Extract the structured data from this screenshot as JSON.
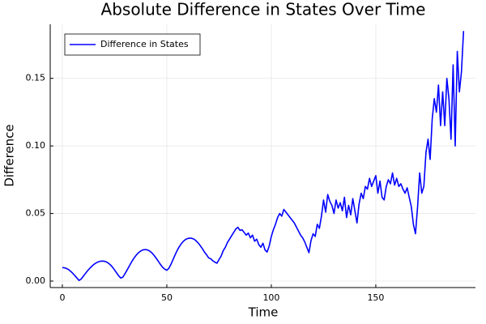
{
  "chart_data": {
    "type": "line",
    "title": "Absolute Difference in States Over Time",
    "x_label": "Time",
    "y_label": "Difference",
    "x": [
      0,
      1,
      2,
      3,
      4,
      5,
      6,
      7,
      8,
      9,
      10,
      11,
      12,
      13,
      14,
      15,
      16,
      17,
      18,
      19,
      20,
      21,
      22,
      23,
      24,
      25,
      26,
      27,
      28,
      29,
      30,
      31,
      32,
      33,
      34,
      35,
      36,
      37,
      38,
      39,
      40,
      41,
      42,
      43,
      44,
      45,
      46,
      47,
      48,
      49,
      50,
      51,
      52,
      53,
      54,
      55,
      56,
      57,
      58,
      59,
      60,
      61,
      62,
      63,
      64,
      65,
      66,
      67,
      68,
      69,
      70,
      71,
      72,
      73,
      74,
      75,
      76,
      77,
      78,
      79,
      80,
      81,
      82,
      83,
      84,
      85,
      86,
      87,
      88,
      89,
      90,
      91,
      92,
      93,
      94,
      95,
      96,
      97,
      98,
      99,
      100,
      101,
      102,
      103,
      104,
      105,
      106,
      107,
      108,
      109,
      110,
      111,
      112,
      113,
      114,
      115,
      116,
      117,
      118,
      119,
      120,
      121,
      122,
      123,
      124,
      125,
      126,
      127,
      128,
      129,
      130,
      131,
      132,
      133,
      134,
      135,
      136,
      137,
      138,
      139,
      140,
      141,
      142,
      143,
      144,
      145,
      146,
      147,
      148,
      149,
      150,
      151,
      152,
      153,
      154,
      155,
      156,
      157,
      158,
      159,
      160,
      161,
      162,
      163,
      164,
      165,
      166,
      167,
      168,
      169,
      170,
      171,
      172,
      173,
      174,
      175,
      176,
      177,
      178,
      179,
      180,
      181,
      182,
      183,
      184,
      185,
      186,
      187,
      188,
      189,
      190,
      191,
      192
    ],
    "series": [
      {
        "name": "Difference in States",
        "color": "#0000ff",
        "values": [
          0.01,
          0.0098,
          0.0093,
          0.0085,
          0.0072,
          0.0057,
          0.004,
          0.0022,
          0.0005,
          0.0015,
          0.0035,
          0.0055,
          0.0075,
          0.0092,
          0.0108,
          0.0122,
          0.0133,
          0.0141,
          0.0146,
          0.0148,
          0.0147,
          0.0142,
          0.0133,
          0.012,
          0.0103,
          0.0082,
          0.006,
          0.0038,
          0.0022,
          0.003,
          0.0055,
          0.0082,
          0.011,
          0.0138,
          0.0163,
          0.0185,
          0.0203,
          0.0217,
          0.0227,
          0.0232,
          0.0233,
          0.0229,
          0.022,
          0.0206,
          0.0188,
          0.0167,
          0.0145,
          0.0122,
          0.0102,
          0.0088,
          0.008,
          0.0095,
          0.0125,
          0.016,
          0.0195,
          0.0228,
          0.0255,
          0.0278,
          0.0296,
          0.0308,
          0.0315,
          0.0318,
          0.0316,
          0.031,
          0.0298,
          0.0282,
          0.0262,
          0.024,
          0.0215,
          0.0195,
          0.0172,
          0.0165,
          0.015,
          0.014,
          0.0132,
          0.016,
          0.0185,
          0.0225,
          0.025,
          0.0285,
          0.031,
          0.0335,
          0.036,
          0.0385,
          0.0398,
          0.0375,
          0.038,
          0.036,
          0.034,
          0.0355,
          0.032,
          0.034,
          0.0295,
          0.031,
          0.027,
          0.025,
          0.028,
          0.023,
          0.0215,
          0.026,
          0.033,
          0.038,
          0.042,
          0.047,
          0.05,
          0.048,
          0.053,
          0.051,
          0.049,
          0.047,
          0.045,
          0.043,
          0.04,
          0.037,
          0.034,
          0.032,
          0.029,
          0.025,
          0.021,
          0.03,
          0.035,
          0.033,
          0.042,
          0.039,
          0.048,
          0.06,
          0.051,
          0.064,
          0.059,
          0.056,
          0.05,
          0.06,
          0.054,
          0.058,
          0.052,
          0.062,
          0.047,
          0.056,
          0.049,
          0.061,
          0.052,
          0.043,
          0.057,
          0.065,
          0.061,
          0.07,
          0.068,
          0.076,
          0.07,
          0.074,
          0.078,
          0.065,
          0.074,
          0.062,
          0.06,
          0.07,
          0.075,
          0.072,
          0.08,
          0.071,
          0.076,
          0.07,
          0.072,
          0.068,
          0.065,
          0.069,
          0.062,
          0.055,
          0.042,
          0.035,
          0.055,
          0.08,
          0.065,
          0.07,
          0.095,
          0.105,
          0.09,
          0.12,
          0.135,
          0.125,
          0.145,
          0.115,
          0.14,
          0.115,
          0.15,
          0.135,
          0.105,
          0.16,
          0.1,
          0.17,
          0.14,
          0.155,
          0.185
        ]
      }
    ],
    "xlim": [
      -5.8,
      197.7
    ],
    "ylim": [
      -0.0048,
      0.19
    ],
    "xticks": [
      0,
      50,
      100,
      150
    ],
    "yticks": [
      {
        "value": 0,
        "label": "0.00"
      },
      {
        "value": 0.05,
        "label": "0.05"
      },
      {
        "value": 0.1,
        "label": "0.10"
      },
      {
        "value": 0.15,
        "label": "0.15"
      }
    ],
    "grid": true,
    "legend": "top-left"
  }
}
